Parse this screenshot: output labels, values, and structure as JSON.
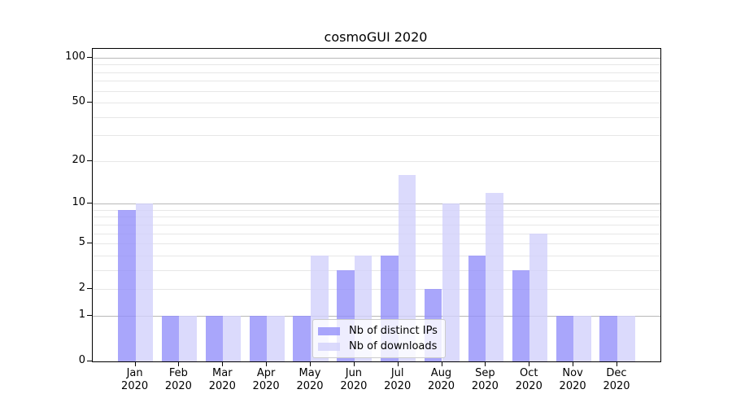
{
  "chart_data": {
    "type": "bar",
    "title": "cosmoGUI 2020",
    "categories": [
      "Jan",
      "Feb",
      "Mar",
      "Apr",
      "May",
      "Jun",
      "Jul",
      "Aug",
      "Sep",
      "Oct",
      "Nov",
      "Dec"
    ],
    "category_year_label": "2020",
    "series": [
      {
        "name": "Nb of distinct IPs",
        "color": "#9390fa",
        "alpha": 0.8,
        "values": [
          9,
          1,
          1,
          1,
          1,
          3,
          4,
          2,
          4,
          3,
          1,
          1
        ]
      },
      {
        "name": "Nb of downloads",
        "color": "#d2d1fb",
        "alpha": 0.8,
        "values": [
          10,
          1,
          1,
          1,
          4,
          4,
          16,
          10,
          12,
          6,
          1,
          1
        ]
      }
    ],
    "xlabel": "",
    "ylabel": "",
    "yaxis": {
      "scale": "log1p",
      "tick_values": [
        0,
        1,
        2,
        5,
        10,
        20,
        50,
        100
      ],
      "tick_labels": [
        "0",
        "1",
        "2",
        "5",
        "10",
        "20",
        "50",
        "100"
      ],
      "major_gridline_values": [
        1,
        10,
        100
      ],
      "minor_gridline_values": [
        2,
        3,
        4,
        5,
        6,
        7,
        8,
        9,
        20,
        30,
        40,
        50,
        60,
        70,
        80,
        90
      ],
      "ylim_top_value": 113
    },
    "grid": "on",
    "legend": {
      "position": "lower-center-inside",
      "entries": [
        "Nb of distinct IPs",
        "Nb of downloads"
      ]
    },
    "colors": {
      "major_grid": "#b9b9b9",
      "minor_grid": "#e7e7e7",
      "axis_frame": "#000000",
      "text": "#000000"
    }
  }
}
